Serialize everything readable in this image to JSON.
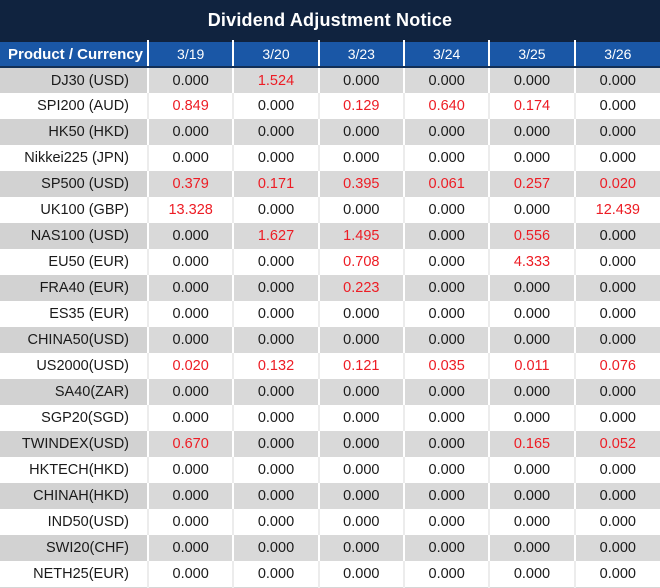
{
  "title": "Dividend Adjustment Notice",
  "colors": {
    "title_bg": "#10233f",
    "header_bg": "#1a57a6",
    "row_alt_bg": "#d9d9d9",
    "red_value": "#ed1c24",
    "text": "#1a1a1a"
  },
  "table": {
    "product_header": "Product / Currency",
    "date_columns": [
      "3/19",
      "3/20",
      "3/23",
      "3/24",
      "3/25",
      "3/26"
    ],
    "rows": [
      {
        "product": "DJ30 (USD)",
        "values": [
          "0.000",
          "1.524",
          "0.000",
          "0.000",
          "0.000",
          "0.000"
        ],
        "red": [
          false,
          true,
          false,
          false,
          false,
          false
        ]
      },
      {
        "product": "SPI200 (AUD)",
        "values": [
          "0.849",
          "0.000",
          "0.129",
          "0.640",
          "0.174",
          "0.000"
        ],
        "red": [
          true,
          false,
          true,
          true,
          true,
          false
        ]
      },
      {
        "product": "HK50 (HKD)",
        "values": [
          "0.000",
          "0.000",
          "0.000",
          "0.000",
          "0.000",
          "0.000"
        ],
        "red": [
          false,
          false,
          false,
          false,
          false,
          false
        ]
      },
      {
        "product": "Nikkei225 (JPN)",
        "values": [
          "0.000",
          "0.000",
          "0.000",
          "0.000",
          "0.000",
          "0.000"
        ],
        "red": [
          false,
          false,
          false,
          false,
          false,
          false
        ]
      },
      {
        "product": "SP500 (USD)",
        "values": [
          "0.379",
          "0.171",
          "0.395",
          "0.061",
          "0.257",
          "0.020"
        ],
        "red": [
          true,
          true,
          true,
          true,
          true,
          true
        ]
      },
      {
        "product": "UK100 (GBP)",
        "values": [
          "13.328",
          "0.000",
          "0.000",
          "0.000",
          "0.000",
          "12.439"
        ],
        "red": [
          true,
          false,
          false,
          false,
          false,
          true
        ]
      },
      {
        "product": "NAS100 (USD)",
        "values": [
          "0.000",
          "1.627",
          "1.495",
          "0.000",
          "0.556",
          "0.000"
        ],
        "red": [
          false,
          true,
          true,
          false,
          true,
          false
        ]
      },
      {
        "product": "EU50 (EUR)",
        "values": [
          "0.000",
          "0.000",
          "0.708",
          "0.000",
          "4.333",
          "0.000"
        ],
        "red": [
          false,
          false,
          true,
          false,
          true,
          false
        ]
      },
      {
        "product": "FRA40 (EUR)",
        "values": [
          "0.000",
          "0.000",
          "0.223",
          "0.000",
          "0.000",
          "0.000"
        ],
        "red": [
          false,
          false,
          true,
          false,
          false,
          false
        ]
      },
      {
        "product": "ES35 (EUR)",
        "values": [
          "0.000",
          "0.000",
          "0.000",
          "0.000",
          "0.000",
          "0.000"
        ],
        "red": [
          false,
          false,
          false,
          false,
          false,
          false
        ]
      },
      {
        "product": "CHINA50(USD)",
        "values": [
          "0.000",
          "0.000",
          "0.000",
          "0.000",
          "0.000",
          "0.000"
        ],
        "red": [
          false,
          false,
          false,
          false,
          false,
          false
        ]
      },
      {
        "product": "US2000(USD)",
        "values": [
          "0.020",
          "0.132",
          "0.121",
          "0.035",
          "0.011",
          "0.076"
        ],
        "red": [
          true,
          true,
          true,
          true,
          true,
          true
        ]
      },
      {
        "product": "SA40(ZAR)",
        "values": [
          "0.000",
          "0.000",
          "0.000",
          "0.000",
          "0.000",
          "0.000"
        ],
        "red": [
          false,
          false,
          false,
          false,
          false,
          false
        ]
      },
      {
        "product": "SGP20(SGD)",
        "values": [
          "0.000",
          "0.000",
          "0.000",
          "0.000",
          "0.000",
          "0.000"
        ],
        "red": [
          false,
          false,
          false,
          false,
          false,
          false
        ]
      },
      {
        "product": "TWINDEX(USD)",
        "values": [
          "0.670",
          "0.000",
          "0.000",
          "0.000",
          "0.165",
          "0.052"
        ],
        "red": [
          true,
          false,
          false,
          false,
          true,
          true
        ]
      },
      {
        "product": "HKTECH(HKD)",
        "values": [
          "0.000",
          "0.000",
          "0.000",
          "0.000",
          "0.000",
          "0.000"
        ],
        "red": [
          false,
          false,
          false,
          false,
          false,
          false
        ]
      },
      {
        "product": "CHINAH(HKD)",
        "values": [
          "0.000",
          "0.000",
          "0.000",
          "0.000",
          "0.000",
          "0.000"
        ],
        "red": [
          false,
          false,
          false,
          false,
          false,
          false
        ]
      },
      {
        "product": "IND50(USD)",
        "values": [
          "0.000",
          "0.000",
          "0.000",
          "0.000",
          "0.000",
          "0.000"
        ],
        "red": [
          false,
          false,
          false,
          false,
          false,
          false
        ]
      },
      {
        "product": "SWI20(CHF)",
        "values": [
          "0.000",
          "0.000",
          "0.000",
          "0.000",
          "0.000",
          "0.000"
        ],
        "red": [
          false,
          false,
          false,
          false,
          false,
          false
        ]
      },
      {
        "product": "NETH25(EUR)",
        "values": [
          "0.000",
          "0.000",
          "0.000",
          "0.000",
          "0.000",
          "0.000"
        ],
        "red": [
          false,
          false,
          false,
          false,
          false,
          false
        ]
      }
    ]
  }
}
